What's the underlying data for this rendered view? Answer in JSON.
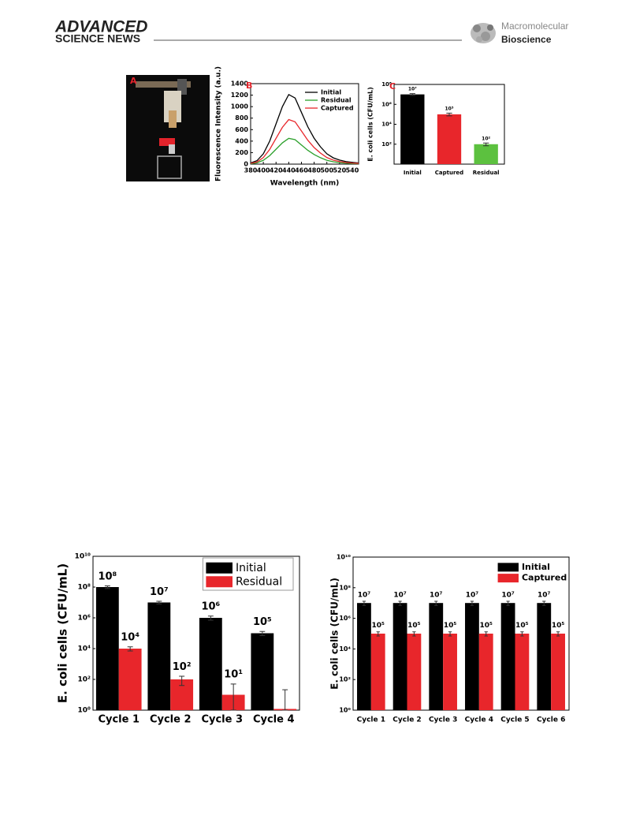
{
  "header": {
    "brand_top": "ADVANCED",
    "brand_bottom": "SCIENCE NEWS",
    "journal_top": "Macromolecular",
    "journal_bottom": "Bioscience"
  },
  "figure": {
    "panel_a_label": "A"
  },
  "chart_data": [
    {
      "type": "line",
      "panel_label": "B",
      "x_label": "Wavelength (nm)",
      "y_label": "Fluorescence Intensity (a.u.)",
      "x": [
        380,
        390,
        400,
        410,
        420,
        430,
        440,
        450,
        460,
        470,
        480,
        490,
        500,
        510,
        520,
        530,
        540,
        550
      ],
      "series": [
        {
          "name": "Initial",
          "color": "#000000",
          "values": [
            20,
            60,
            180,
            400,
            700,
            1000,
            1210,
            1150,
            900,
            650,
            450,
            300,
            180,
            110,
            70,
            45,
            30,
            20
          ]
        },
        {
          "name": "Residual",
          "color": "#2ca02c",
          "values": [
            7,
            22,
            67,
            148,
            259,
            370,
            448,
            426,
            333,
            241,
            167,
            111,
            67,
            41,
            26,
            17,
            11,
            7
          ]
        },
        {
          "name": "Captured",
          "color": "#e8262b",
          "values": [
            13,
            38,
            115,
            256,
            448,
            640,
            775,
            736,
            576,
            416,
            288,
            192,
            115,
            70,
            45,
            29,
            19,
            13
          ]
        }
      ],
      "xlim": [
        380,
        550
      ],
      "xticks": [
        380,
        400,
        420,
        440,
        460,
        480,
        500,
        520,
        540
      ],
      "ylim": [
        0,
        1400
      ],
      "yticks": [
        0,
        200,
        400,
        600,
        800,
        1000,
        1200,
        1400
      ],
      "legend": "upper right",
      "grid": false
    },
    {
      "type": "bar",
      "panel_label": "C",
      "y_label": "E. coli cells (CFU/mL)",
      "log_y": true,
      "categories": [
        "Initial",
        "Captured",
        "Residual"
      ],
      "values": [
        10000000,
        100000,
        100
      ],
      "errors": [
        2000000,
        30000,
        30
      ],
      "value_labels": [
        "10⁷",
        "10⁵",
        "10²"
      ],
      "colors": [
        "#000000",
        "#e8262b",
        "#5cc13f"
      ],
      "ylim": [
        1,
        100000000
      ],
      "yticks": [
        {
          "value": 100,
          "label": "10²"
        },
        {
          "value": 10000,
          "label": "10⁴"
        },
        {
          "value": 1000000,
          "label": "10⁶"
        },
        {
          "value": 100000000,
          "label": "10⁸"
        }
      ],
      "grid": false
    },
    {
      "type": "bar",
      "y_label": "E. coli cells (CFU/mL)",
      "log_y": true,
      "categories": [
        "Cycle 1",
        "Cycle 2",
        "Cycle 3",
        "Cycle 4"
      ],
      "series": [
        {
          "name": "Initial",
          "color": "#000000",
          "values": [
            100000000,
            10000000,
            1000000,
            100000
          ],
          "errors": [
            20000000,
            2000000,
            300000,
            30000
          ],
          "value_labels": [
            "10⁸",
            "10⁷",
            "10⁶",
            "10⁵"
          ]
        },
        {
          "name": "Residual",
          "color": "#e8262b",
          "values": [
            10000,
            100,
            10,
            1.2
          ],
          "errors": [
            3000,
            60,
            40,
            20
          ],
          "value_labels": [
            "10⁴",
            "10²",
            "10¹",
            null
          ]
        }
      ],
      "ylim": [
        1,
        10000000000
      ],
      "yticks": [
        {
          "value": 1,
          "label": "10⁰"
        },
        {
          "value": 100,
          "label": "10²"
        },
        {
          "value": 10000,
          "label": "10⁴"
        },
        {
          "value": 1000000,
          "label": "10⁶"
        },
        {
          "value": 100000000,
          "label": "10⁸"
        },
        {
          "value": 10000000000,
          "label": "10¹⁰"
        }
      ],
      "legend": "upper right",
      "grid": false
    },
    {
      "type": "bar",
      "y_label": "E. coli cells (CFU/mL)",
      "log_y": true,
      "categories": [
        "Cycle 1",
        "Cycle 2",
        "Cycle 3",
        "Cycle 4",
        "Cycle 5",
        "Cycle 6"
      ],
      "series": [
        {
          "name": "Initial",
          "color": "#000000",
          "values": [
            10000000,
            10000000,
            10000000,
            10000000,
            10000000,
            10000000
          ],
          "errors": [
            3000000,
            3000000,
            3000000,
            3000000,
            3000000,
            3000000
          ],
          "value_labels": [
            "10⁷",
            "10⁷",
            "10⁷",
            "10⁷",
            "10⁷",
            "10⁷"
          ]
        },
        {
          "name": "Captured",
          "color": "#e8262b",
          "values": [
            100000,
            100000,
            100000,
            100000,
            100000,
            100000
          ],
          "errors": [
            30000,
            30000,
            30000,
            30000,
            30000,
            30000
          ],
          "value_labels": [
            "10⁵",
            "10⁵",
            "10⁵",
            "10⁵",
            "10⁵",
            "10⁵"
          ]
        }
      ],
      "ylim": [
        1,
        10000000000
      ],
      "yticks": [
        {
          "value": 1,
          "label": "10⁰"
        },
        {
          "value": 100,
          "label": "10²"
        },
        {
          "value": 10000,
          "label": "10⁴"
        },
        {
          "value": 1000000,
          "label": "10⁶"
        },
        {
          "value": 100000000,
          "label": "10⁸"
        },
        {
          "value": 10000000000,
          "label": "10¹⁰"
        }
      ],
      "legend": "upper left",
      "grid": false
    }
  ]
}
